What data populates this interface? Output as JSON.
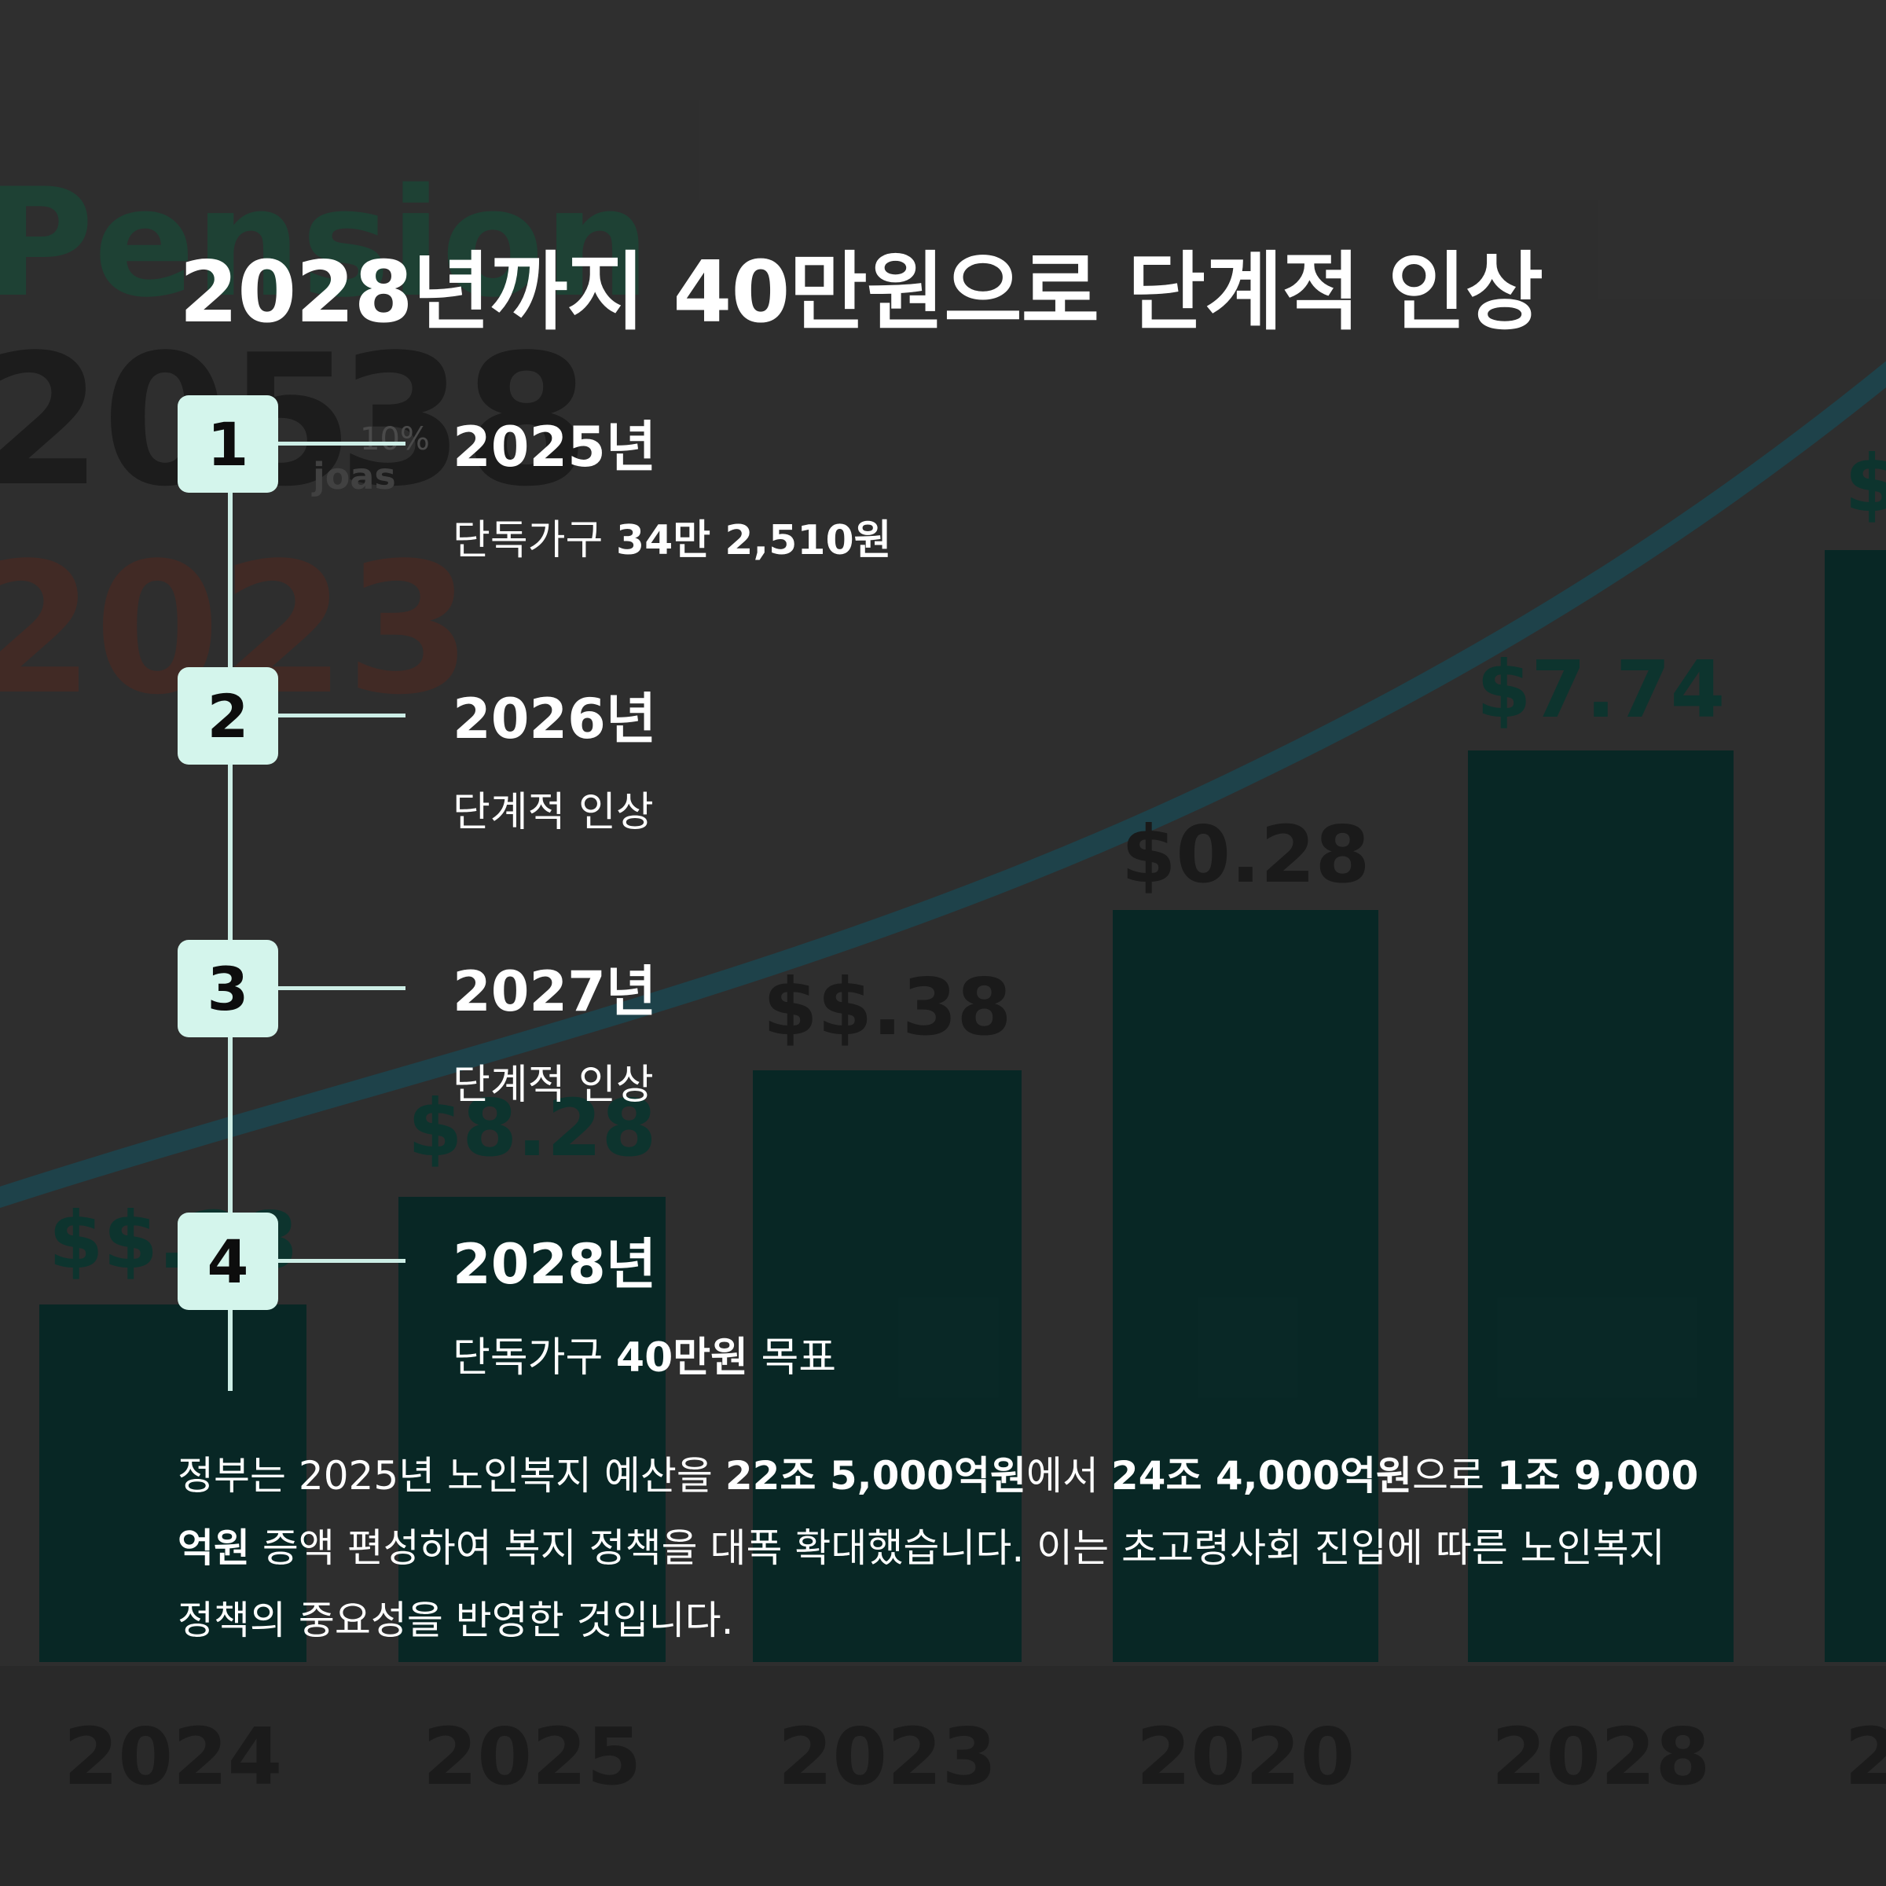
{
  "title": "2028년까지 40만원으로 단계적 인상",
  "steps": [
    {
      "number": "1",
      "year": "2025년",
      "desc_prefix": "단독가구 ",
      "desc_bold": "34만 2,510원",
      "desc_suffix": ""
    },
    {
      "number": "2",
      "year": "2026년",
      "desc_prefix": "단계적 인상",
      "desc_bold": "",
      "desc_suffix": ""
    },
    {
      "number": "3",
      "year": "2027년",
      "desc_prefix": "단계적 인상",
      "desc_bold": "",
      "desc_suffix": ""
    },
    {
      "number": "4",
      "year": "2028년",
      "desc_prefix": "단독가구 ",
      "desc_bold": "40만원",
      "desc_suffix": " 목표"
    }
  ],
  "summary": {
    "p1": "정부는 2025년 노인복지 예산을 ",
    "b1": "22조 5,000억원",
    "p2": "에서 ",
    "b2": "24조 4,000억원",
    "p3": "으로 ",
    "b3": "1조 9,000억원",
    "p4": " 증액 편성하여 복지 정책을 대폭 확대했습니다. 이는 초고령사회 진입에 따른 노인복지 정책의 중요성을 반영한 것입니다."
  },
  "background": {
    "watermark_word": "Pension",
    "watermark_numbers": [
      "205",
      "38",
      "2023"
    ],
    "watermark_small": [
      "10%",
      "joas"
    ],
    "bar_labels": [
      "$$.28",
      "$8.28",
      "$$.38",
      "$0.28",
      "$7.74",
      "$"
    ],
    "x_labels": [
      "2024",
      "2025",
      "2023",
      "2020",
      "2028",
      "2"
    ],
    "colors": {
      "bar": "#042a28",
      "curve": "#1f4b55",
      "label": "#0a3a32"
    }
  }
}
